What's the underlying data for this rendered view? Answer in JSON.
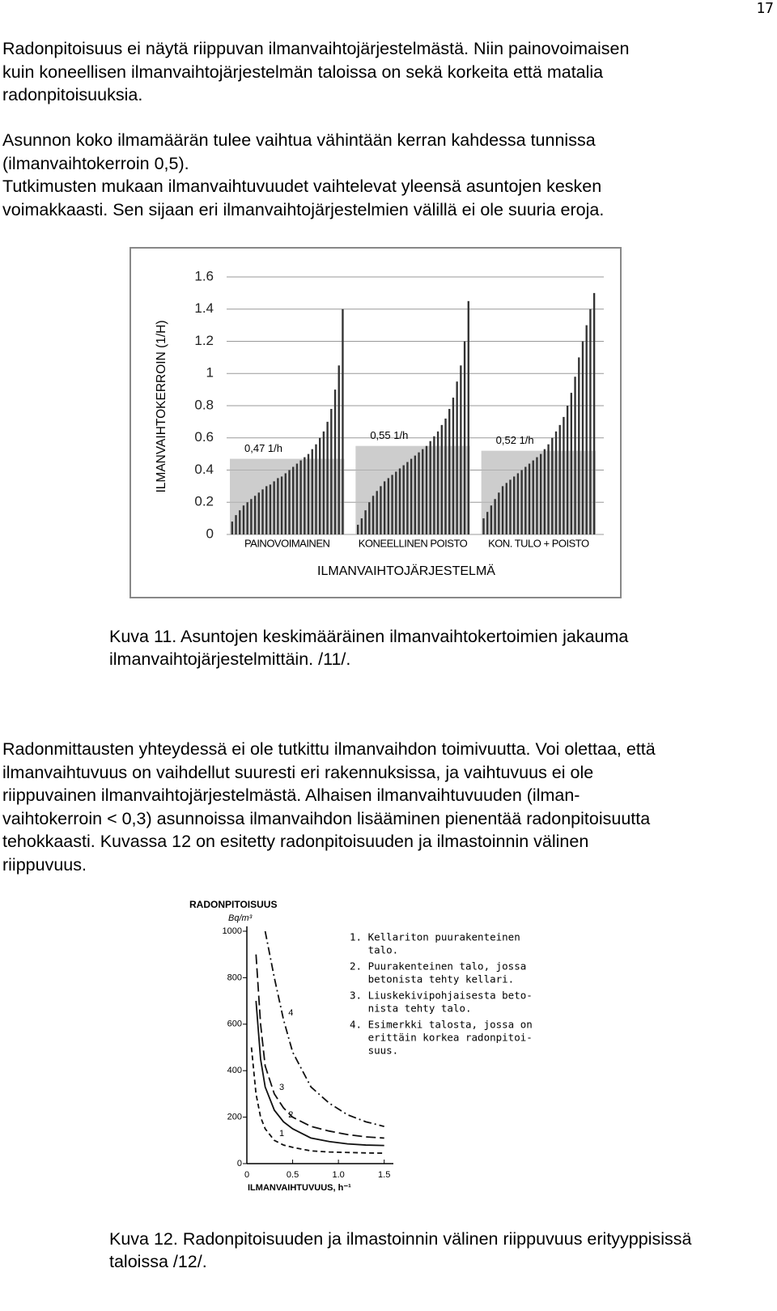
{
  "page_number": "17",
  "paragraphs": [
    [
      "Radonpitoisuus ei näytä riippuvan ilmanvaihtojärjestelmästä. Niin painovoimaisen",
      "kuin koneellisen ilmanvaihtojärjestelmän taloissa on sekä korkeita että matalia",
      "radonpitoisuuksia."
    ],
    [
      "Asunnon koko ilmamäärän tulee vaihtua vähintään kerran kahdessa tunnissa",
      "(ilmanvaihtokerroin 0,5).",
      "Tutkimusten mukaan ilmanvaihtuvuudet vaihtelevat yleensä asuntojen kesken",
      "voimakkaasti. Sen sijaan eri ilmanvaihtojärjestelmien välillä ei ole suuria eroja."
    ],
    [
      "Radonmittausten yhteydessä ei ole tutkittu ilmanvaihdon toimivuutta. Voi olettaa, että",
      "ilmanvaihtuvuus on vaihdellut suuresti eri rakennuksissa, ja vaihtuvuus ei ole",
      "riippuvainen ilmanvaihtojärjestelmästä. Alhaisen ilmanvaihtuvuuden (ilman-",
      "vaihtokerroin < 0,3) asunnoissa ilmanvaihdon lisääminen pienentää radonpitoisuutta",
      "tehokkaasti. Kuvassa 12 on esitetty radonpitoisuuden ja ilmastoinnin välinen",
      "riippuvuus."
    ]
  ],
  "captions": [
    [
      "Kuva 11. Asuntojen keskimääräinen ilmanvaihtokertoimien jakauma",
      "ilmanvaihtojärjestelmittäin. /11/."
    ],
    [
      "Kuva 12. Radonpitoisuuden ja ilmastoinnin välinen riippuvuus erityyppisissä",
      "taloissa /12/."
    ]
  ],
  "chart_data": [
    {
      "type": "bar",
      "y_label": "ILMANVAIHTOKERROIN (1/H)",
      "x_label": "ILMANVAIHTOJÄRJESTELMÄ",
      "ylim": [
        0,
        1.6
      ],
      "yticks": [
        0,
        0.2,
        0.4,
        0.6,
        0.8,
        1,
        1.2,
        1.4,
        1.6
      ],
      "grid": true,
      "color": "#333333",
      "mean_color": "#b8b8b8",
      "groups": [
        {
          "name": "PAINOVOIMAINEN",
          "mean": 0.47,
          "mean_label": "0,47 1/h",
          "values": [
            0.08,
            0.12,
            0.15,
            0.18,
            0.2,
            0.22,
            0.24,
            0.26,
            0.28,
            0.3,
            0.31,
            0.33,
            0.35,
            0.36,
            0.38,
            0.4,
            0.42,
            0.44,
            0.46,
            0.48,
            0.5,
            0.53,
            0.56,
            0.6,
            0.64,
            0.7,
            0.78,
            0.9,
            1.05,
            1.4
          ]
        },
        {
          "name": "KONEELLINEN POISTO",
          "mean": 0.55,
          "mean_label": "0,55 1/h",
          "values": [
            0.06,
            0.1,
            0.15,
            0.2,
            0.24,
            0.27,
            0.3,
            0.33,
            0.35,
            0.37,
            0.39,
            0.41,
            0.43,
            0.45,
            0.47,
            0.49,
            0.51,
            0.53,
            0.55,
            0.58,
            0.61,
            0.64,
            0.68,
            0.72,
            0.78,
            0.85,
            0.95,
            1.05,
            1.2,
            1.45
          ]
        },
        {
          "name": "KON. TULO + POISTO",
          "mean": 0.52,
          "mean_label": "0,52 1/h",
          "values": [
            0.1,
            0.14,
            0.18,
            0.22,
            0.26,
            0.3,
            0.32,
            0.34,
            0.36,
            0.38,
            0.4,
            0.42,
            0.44,
            0.46,
            0.48,
            0.5,
            0.53,
            0.56,
            0.6,
            0.64,
            0.68,
            0.73,
            0.8,
            0.88,
            0.98,
            1.1,
            1.2,
            1.3,
            1.4,
            1.5
          ]
        }
      ]
    },
    {
      "type": "line",
      "title": "RADONPITOISUUS",
      "y_unit": "Bq/m³",
      "x_label": "ILMANVAIHTUVUUS, h⁻¹",
      "xlim": [
        0,
        1.6
      ],
      "xticks": [
        0,
        0.5,
        {
          "value": 1.0,
          "label": "1.0"
        },
        1.5
      ],
      "ylim": [
        0,
        1000
      ],
      "yticks": [
        0,
        200,
        400,
        600,
        800,
        1000
      ],
      "x": [
        0.05,
        0.1,
        0.15,
        0.2,
        0.3,
        0.4,
        0.5,
        0.7,
        0.9,
        1.1,
        1.3,
        1.5
      ],
      "series": [
        {
          "name": "1",
          "color": "#111111",
          "style": "dashed",
          "values": [
            500,
            300,
            200,
            150,
            100,
            80,
            70,
            55,
            50,
            48,
            46,
            45
          ]
        },
        {
          "name": "2",
          "color": "#111111",
          "style": "solid",
          "values": [
            null,
            700,
            450,
            330,
            230,
            180,
            150,
            110,
            95,
            85,
            80,
            78
          ]
        },
        {
          "name": "3",
          "color": "#111111",
          "style": "longdash",
          "values": [
            null,
            900,
            600,
            420,
            300,
            240,
            200,
            160,
            140,
            125,
            115,
            110
          ]
        },
        {
          "name": "4",
          "color": "#111111",
          "style": "dashdot",
          "values": [
            null,
            null,
            null,
            1000,
            800,
            620,
            480,
            330,
            260,
            210,
            180,
            160
          ]
        }
      ],
      "legend": [
        [
          "1. Kellariton puurakenteinen",
          "   talo."
        ],
        [
          "2. Puurakenteinen talo, jossa",
          "   betonista tehty kellari."
        ],
        [
          "3. Liuskekivipohjaisesta beto-",
          "   nista tehty talo."
        ],
        [
          "4. Esimerkki talosta, jossa on",
          "   erittäin korkea radonpitoi-",
          "   suus."
        ]
      ]
    }
  ]
}
